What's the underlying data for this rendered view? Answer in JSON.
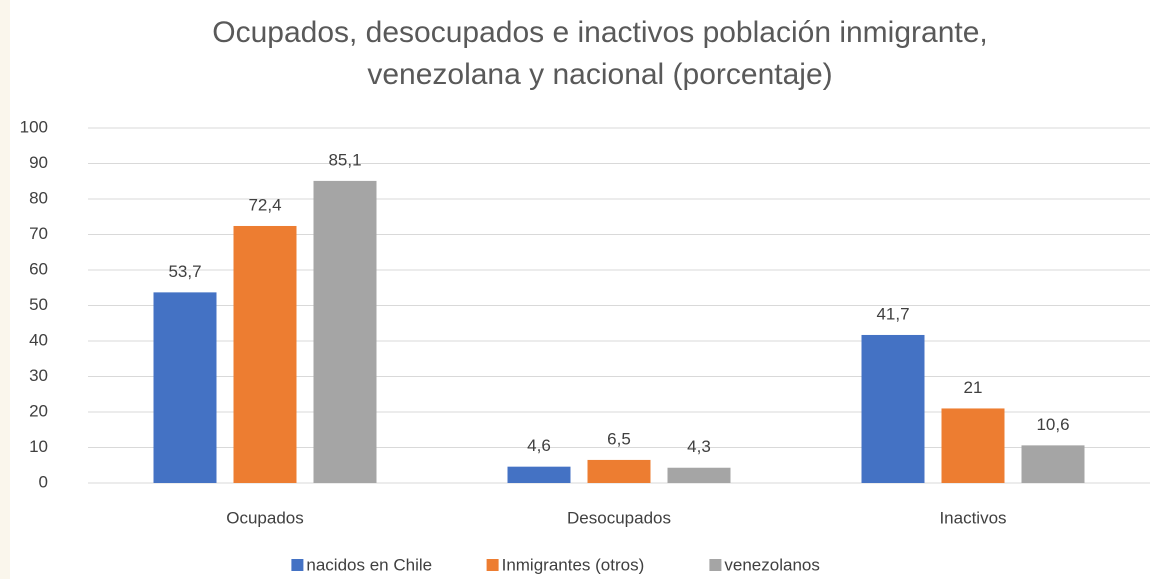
{
  "chart_data": {
    "type": "bar",
    "title": "Ocupados, desocupados e inactivos población inmigrante, venezolana y nacional (porcentaje)",
    "categories": [
      "Ocupados",
      "Desocupados",
      "Inactivos"
    ],
    "series": [
      {
        "name": "nacidos en Chile",
        "color": "#4472c4",
        "values": [
          53.7,
          4.6,
          41.7
        ],
        "value_labels": [
          "53,7",
          "4,6",
          "41,7"
        ]
      },
      {
        "name": "Inmigrantes (otros)",
        "color": "#ed7d31",
        "values": [
          72.4,
          6.5,
          21
        ],
        "value_labels": [
          "72,4",
          "6,5",
          "21"
        ]
      },
      {
        "name": "venezolanos",
        "color": "#a5a5a5",
        "values": [
          85.1,
          4.3,
          10.6
        ],
        "value_labels": [
          "85,1",
          "4,3",
          "10,6"
        ]
      }
    ],
    "ylim": [
      0,
      100
    ],
    "yticks": [
      0,
      10,
      20,
      30,
      40,
      50,
      60,
      70,
      80,
      90,
      100
    ],
    "grid": true,
    "legend": "bottom"
  }
}
